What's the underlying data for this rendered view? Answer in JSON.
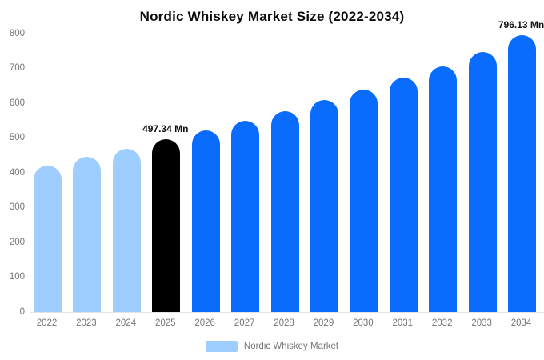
{
  "title": "Nordic Whiskey Market Size (2022-2034)",
  "legend": {
    "label": "Nordic Whiskey Market",
    "swatch_color": "#9ECEFF"
  },
  "colors": {
    "light_blue": "#9ECEFF",
    "blue": "#0A6CFC",
    "black": "#000000",
    "axis_text": "#757575",
    "axis_line": "#E3E3E3",
    "title_text": "#0B0B0B",
    "background": "#FFFFFF"
  },
  "chart_data": {
    "type": "bar",
    "title": "Nordic Whiskey Market Size (2022-2034)",
    "categories": [
      "2022",
      "2023",
      "2024",
      "2025",
      "2026",
      "2027",
      "2028",
      "2029",
      "2030",
      "2031",
      "2032",
      "2033",
      "2034"
    ],
    "values": [
      420,
      445,
      468,
      497.34,
      522,
      550,
      576,
      609,
      640,
      674,
      706,
      748,
      796.13
    ],
    "bar_color_keys": [
      "light_blue",
      "light_blue",
      "light_blue",
      "black",
      "blue",
      "blue",
      "blue",
      "blue",
      "blue",
      "blue",
      "blue",
      "blue",
      "blue"
    ],
    "data_labels": [
      {
        "category": "2025",
        "text": "497.34 Mn"
      },
      {
        "category": "2034",
        "text": "796.13 Mn"
      }
    ],
    "xlabel": "",
    "ylabel": "",
    "ylim": [
      0,
      800
    ],
    "yticks": [
      0,
      100,
      200,
      300,
      400,
      500,
      600,
      700,
      800
    ],
    "grid": false,
    "legend_position": "bottom",
    "unit": "Mn"
  }
}
